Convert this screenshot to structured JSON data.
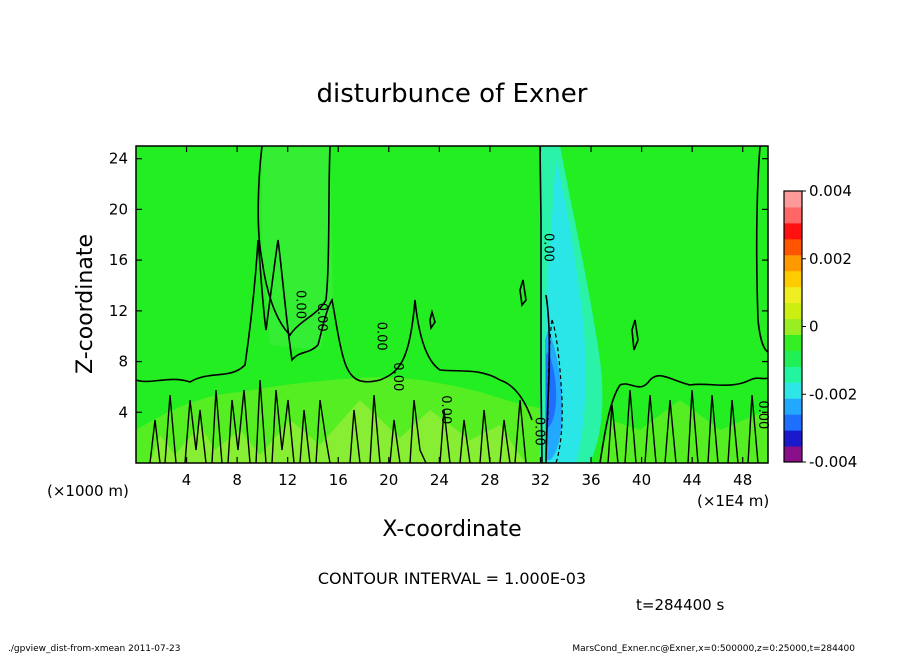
{
  "chart_data": {
    "type": "heatmap",
    "title": "disturbunce of Exner",
    "xlabel": "X-coordinate",
    "ylabel": "Z-coordinate",
    "x_unit_left": "(×1000 m)",
    "x_unit_right": "(×1E4 m)",
    "xlim": [
      0,
      50
    ],
    "ylim": [
      0,
      25
    ],
    "x_ticks": [
      "4",
      "8",
      "12",
      "16",
      "20",
      "24",
      "28",
      "32",
      "36",
      "40",
      "44",
      "48"
    ],
    "y_ticks": [
      "4",
      "8",
      "12",
      "16",
      "20",
      "24"
    ],
    "x_tick_values": [
      4,
      8,
      12,
      16,
      20,
      24,
      28,
      32,
      36,
      40,
      44,
      48
    ],
    "y_tick_values": [
      4,
      8,
      12,
      16,
      20,
      24
    ],
    "colorbar": {
      "min": -0.004,
      "max": 0.004,
      "labels": [
        "0.004",
        "0.002",
        "0",
        "-0.002",
        "-0.004"
      ],
      "label_values": [
        0.004,
        0.002,
        0,
        -0.002,
        -0.004
      ],
      "colors": [
        "#8a0f8a",
        "#1a1acc",
        "#1f6fff",
        "#23a8ff",
        "#2ee6e6",
        "#22f5a0",
        "#22ee55",
        "#33ee22",
        "#99ee22",
        "#ccee11",
        "#eeee22",
        "#ffcc00",
        "#ff9900",
        "#ff5500",
        "#ff1111",
        "#ff6666",
        "#ff9a9a"
      ]
    },
    "background_color": "#22ee22",
    "contour_labels": [
      "0.00",
      "0.00",
      "0.00",
      "0.00",
      "0.00",
      "0.00",
      "0.00",
      "0.00"
    ],
    "contour_interval_text": "CONTOUR INTERVAL = 1.000E-03",
    "time_text": "t=284400 s"
  },
  "footer": {
    "left": "./gpview_dist-from-xmean 2011-07-23",
    "right": "MarsCond_Exner.nc@Exner,x=0:500000,z=0:25000,t=284400"
  }
}
